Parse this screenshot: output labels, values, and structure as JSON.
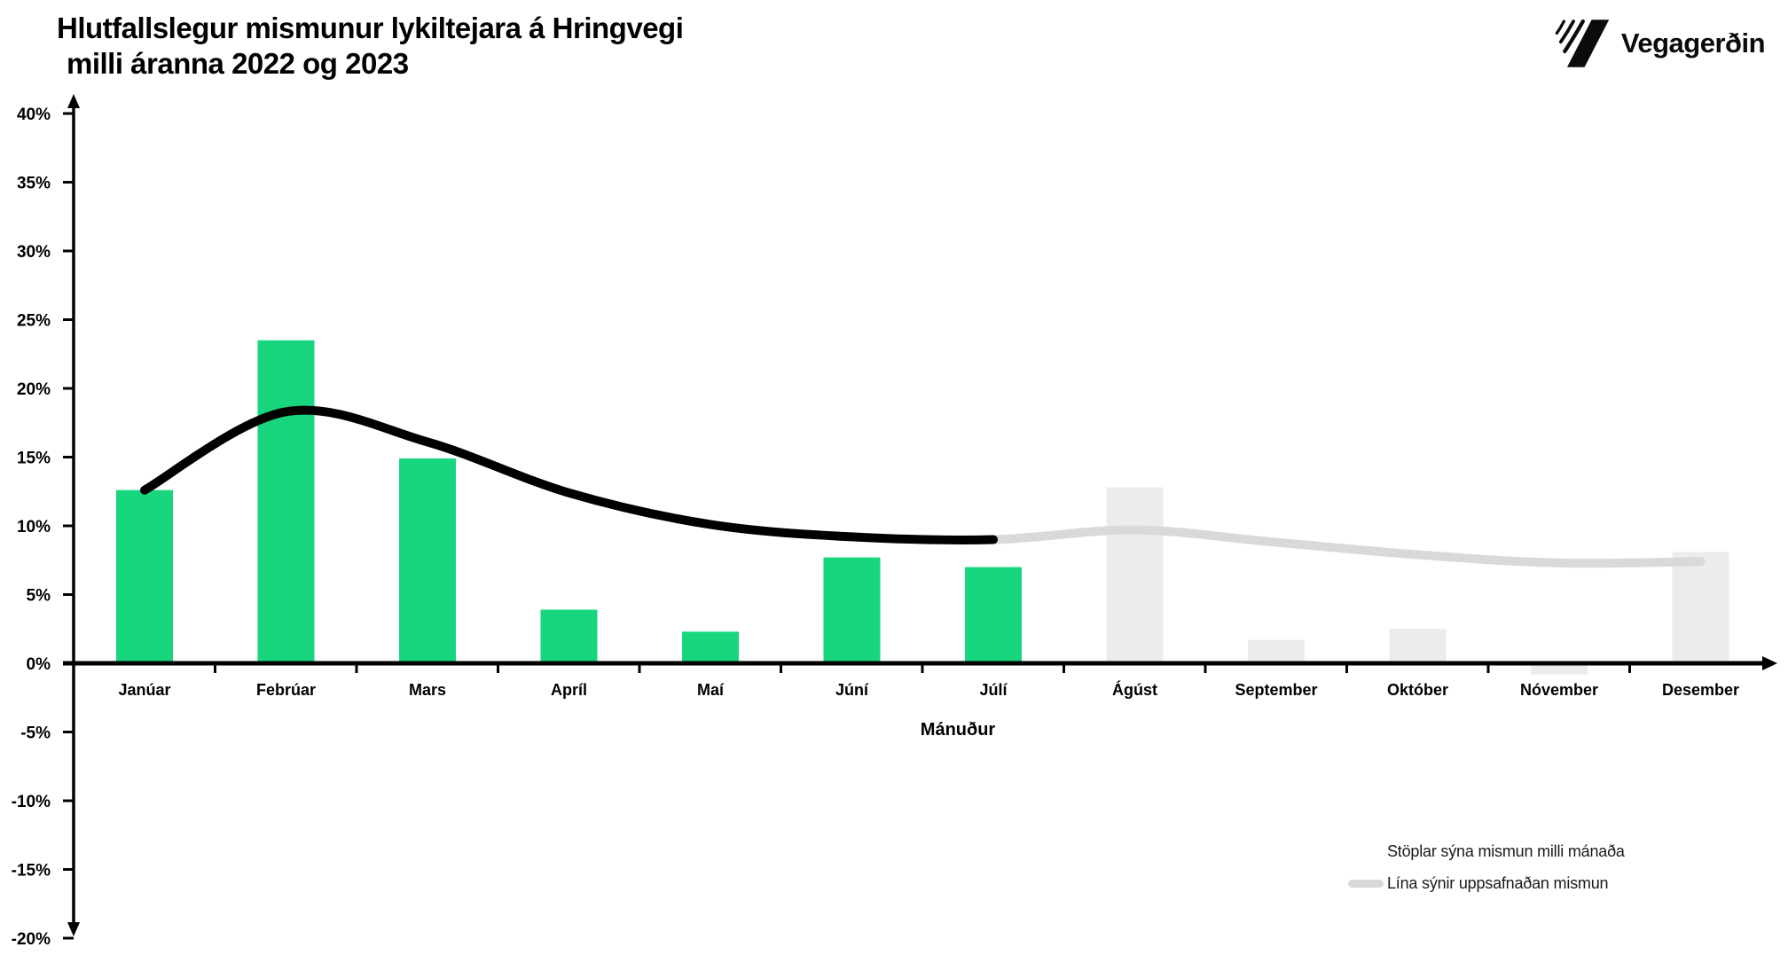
{
  "header": {
    "title_line1": "Hlutfallslegur mismunur lykiltejara á Hringvegi",
    "title_line2": "milli áranna 2022 og 2023",
    "logo_text": "Vegagerðin"
  },
  "legend": {
    "items": [
      {
        "label": "Stöplar sýna mismun milli mánaða",
        "swatch": "none"
      },
      {
        "label": "Lína sýnir uppsafnaðan mismun",
        "swatch": "gray-line"
      }
    ]
  },
  "colors": {
    "bar_actual_green": "#17d67e",
    "bar_projected_gray": "#ececec",
    "line_actual_black": "#000000",
    "line_projected_gray": "#d9d9d9"
  },
  "chart_data": {
    "type": "bar+line",
    "title": "Hlutfallslegur mismunur lykiltejara á Hringvegi milli áranna 2022 og 2023",
    "xlabel": "Mánuður",
    "ylabel": "",
    "unit": "%",
    "categories": [
      "Janúar",
      "Febrúar",
      "Mars",
      "Apríl",
      "Maí",
      "Júní",
      "Júlí",
      "Ágúst",
      "September",
      "Október",
      "Nóvember",
      "Desember"
    ],
    "series": [
      {
        "name": "Stöplar sýna mismun milli mánaða",
        "type": "bar",
        "values": [
          12.6,
          23.5,
          14.9,
          3.9,
          2.3,
          7.7,
          7.0,
          12.8,
          1.7,
          2.5,
          -0.8,
          8.1
        ],
        "actual_count": 7,
        "color_actual": "#17d67e",
        "color_projected": "#ececec"
      },
      {
        "name": "Lína sýnir uppsafnaðan mismun",
        "type": "line",
        "values": [
          12.6,
          18.3,
          16.1,
          12.4,
          10.1,
          9.2,
          9.0,
          9.7,
          8.8,
          7.9,
          7.3,
          7.4
        ],
        "actual_count": 7,
        "color_actual": "#000000",
        "color_projected": "#d9d9d9"
      }
    ],
    "ylim": [
      -20,
      40
    ],
    "y_tick_step": 5,
    "y_tick_labels": [
      "40%",
      "35%",
      "30%",
      "25%",
      "20%",
      "15%",
      "10%",
      "5%",
      "0%",
      "-5%",
      "-10%",
      "-15%",
      "-20%"
    ],
    "grid": false,
    "legend_position": "bottom-right"
  }
}
